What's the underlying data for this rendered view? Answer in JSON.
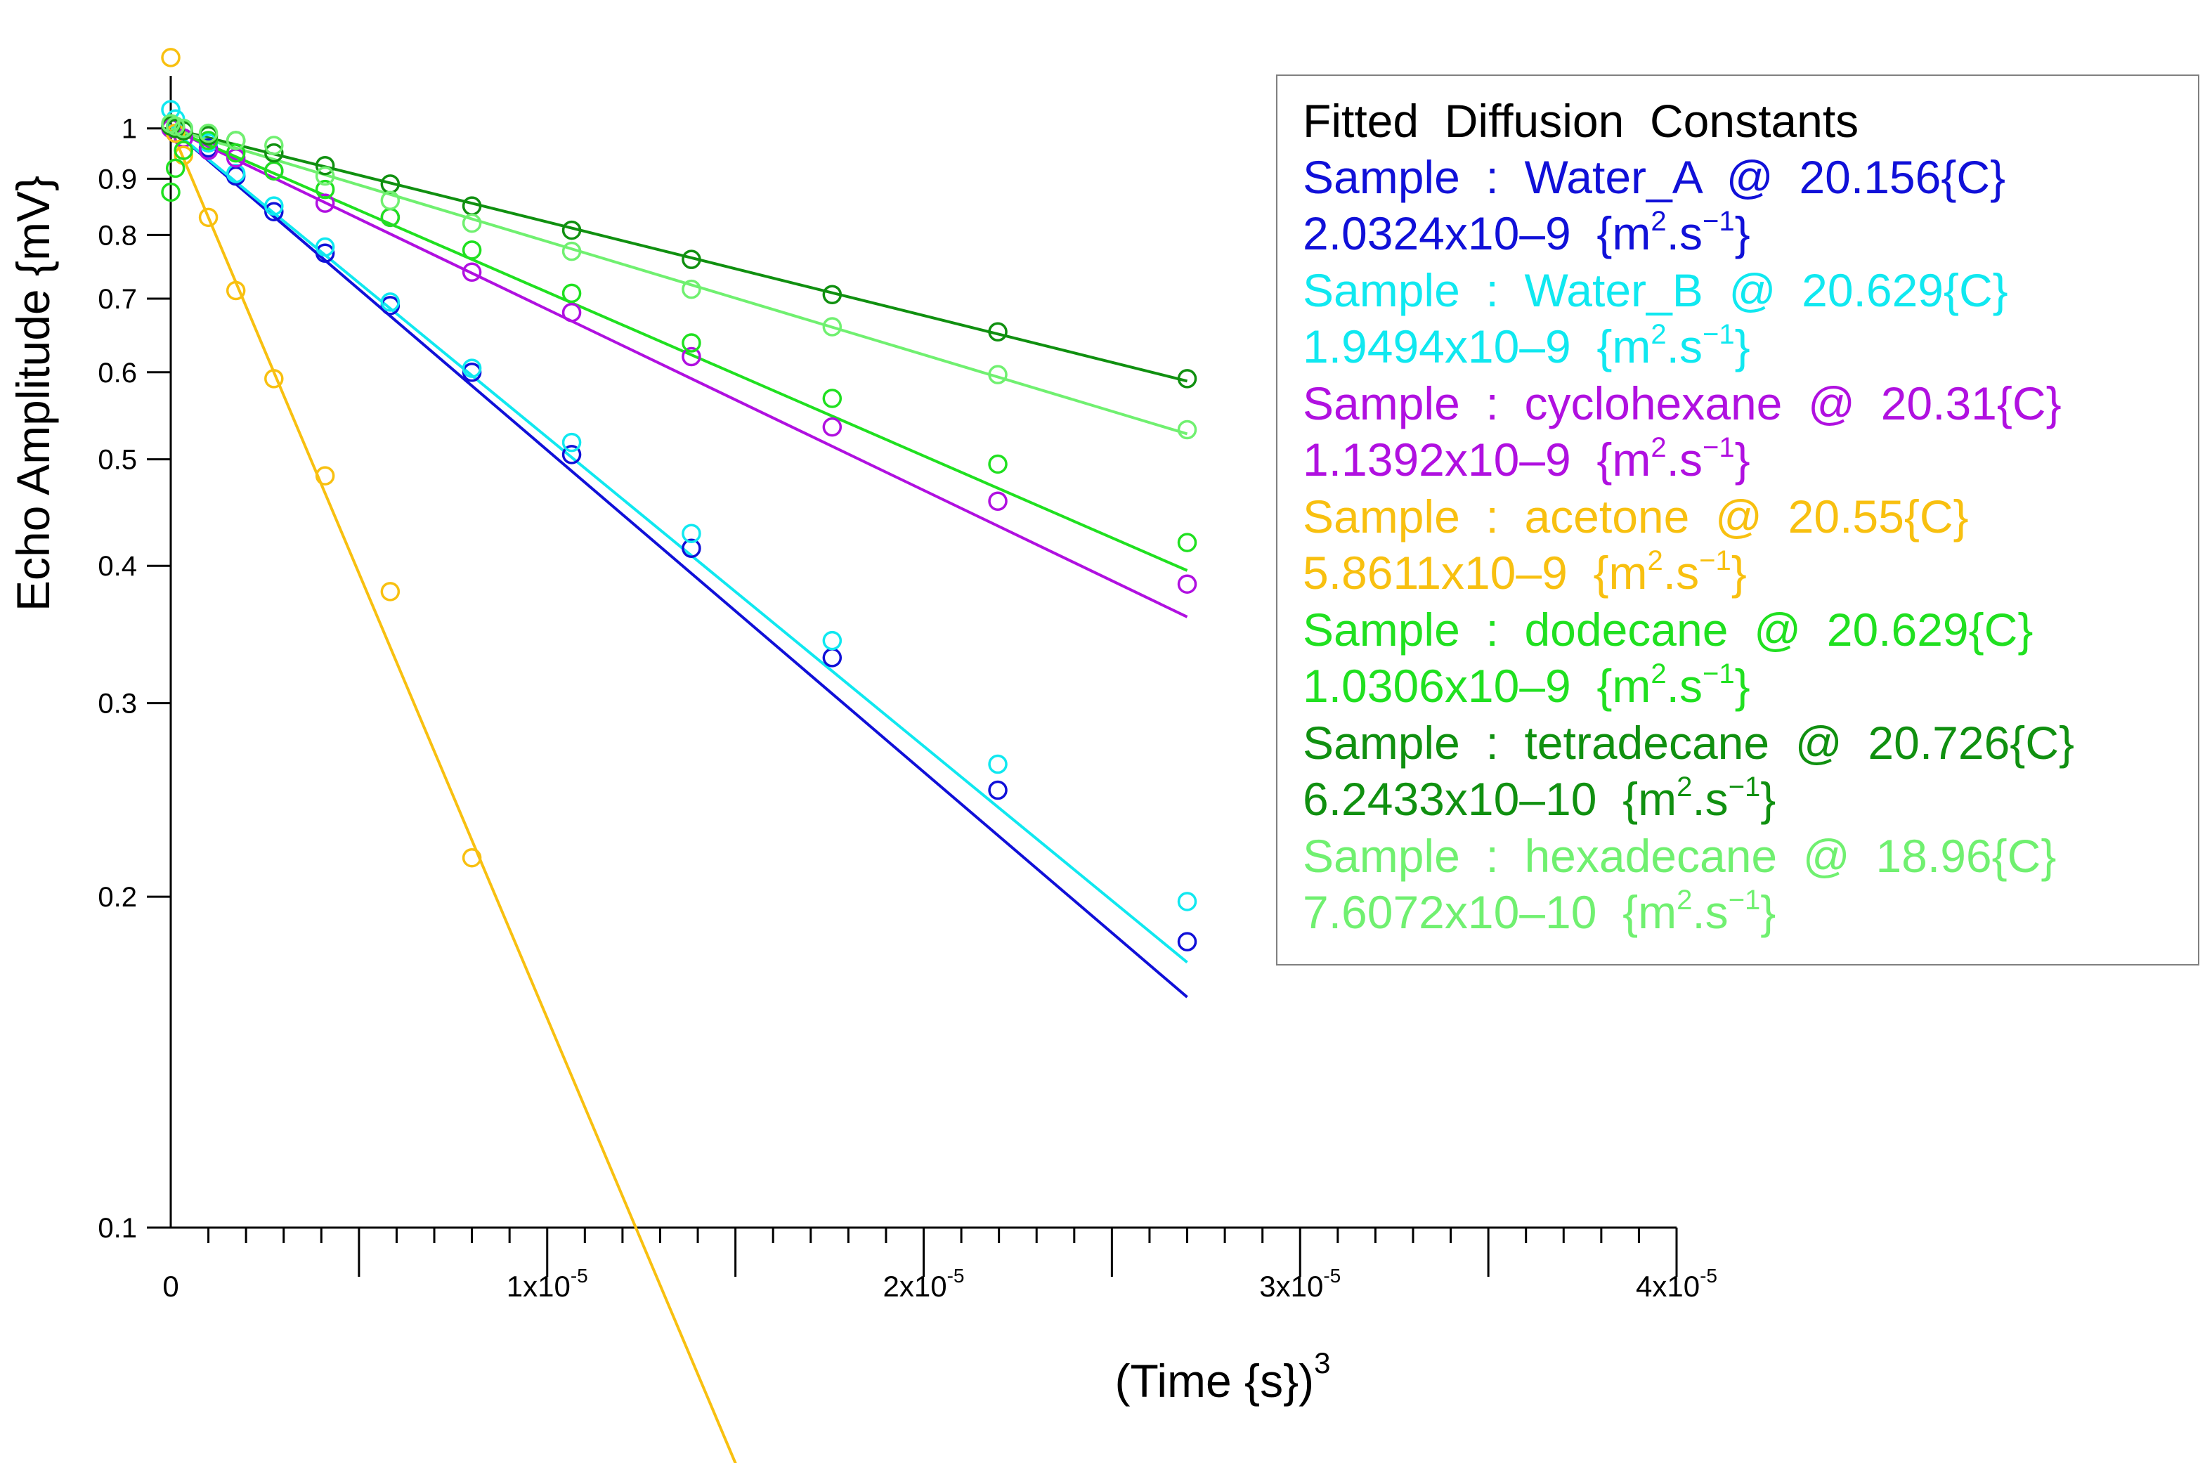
{
  "chart_data": {
    "type": "scatter",
    "xlabel": "(Time  {s})",
    "xlabel_superscript": "3",
    "ylabel": "Echo  Amplitude  {mV}",
    "xlim": [
      0,
      4e-05
    ],
    "ylim": [
      0.1,
      1.1
    ],
    "yscale": "log",
    "x_ticks": [
      {
        "value": 0,
        "base": "0",
        "exp": ""
      },
      {
        "value": 1e-05,
        "base": "1x10",
        "exp": "-5"
      },
      {
        "value": 2e-05,
        "base": "2x10",
        "exp": "-5"
      },
      {
        "value": 3e-05,
        "base": "3x10",
        "exp": "-5"
      },
      {
        "value": 4e-05,
        "base": "4x10",
        "exp": "-5"
      }
    ],
    "y_ticks": [
      {
        "value": 1,
        "label": "1"
      },
      {
        "value": 0.9,
        "label": "0.9"
      },
      {
        "value": 0.8,
        "label": "0.8"
      },
      {
        "value": 0.7,
        "label": "0.7"
      },
      {
        "value": 0.6,
        "label": "0.6"
      },
      {
        "value": 0.5,
        "label": "0.5"
      },
      {
        "value": 0.4,
        "label": "0.4"
      },
      {
        "value": 0.3,
        "label": "0.3"
      },
      {
        "value": 0.2,
        "label": "0.2"
      },
      {
        "value": 0.1,
        "label": "0.1"
      }
    ],
    "legend_title": "Fitted  Diffusion  Constants",
    "legend_position": "top-right",
    "series": [
      {
        "name": "Water_A",
        "color": "#1010d8",
        "line1": "Sample  :  Water_A  @  20.156{C}",
        "line2_main": "2.0324x10–9  {m",
        "line2_mid": ".s",
        "line2_end": "}",
        "fit_slope": -67400,
        "x": [
          0,
          1.25e-07,
          3.4e-07,
          1e-06,
          1.73e-06,
          2.74e-06,
          4.1e-06,
          5.83e-06,
          8e-06,
          1.065e-05,
          1.383e-05,
          1.757e-05,
          2.197e-05,
          2.7e-05
        ],
        "y": [
          1.005,
          1.0,
          0.98,
          0.96,
          0.905,
          0.84,
          0.77,
          0.69,
          0.6,
          0.505,
          0.415,
          0.33,
          0.25,
          0.182
        ]
      },
      {
        "name": "Water_B",
        "color": "#10e8f0",
        "line1": "Sample  :  Water_B  @  20.629{C}",
        "line2_main": "1.9494x10–9  {m",
        "line2_mid": ".s",
        "line2_end": "}",
        "fit_slope": -64700,
        "x": [
          0,
          1.25e-07,
          3.4e-07,
          1e-06,
          1.73e-06,
          2.74e-06,
          4.1e-06,
          5.83e-06,
          8e-06,
          1.065e-05,
          1.383e-05,
          1.757e-05,
          2.197e-05,
          2.7e-05
        ],
        "y": [
          1.04,
          1.02,
          1.0,
          0.97,
          0.91,
          0.85,
          0.78,
          0.695,
          0.605,
          0.518,
          0.428,
          0.342,
          0.264,
          0.198
        ]
      },
      {
        "name": "cyclohexane",
        "color": "#b010e0",
        "line1": "Sample  :  cyclohexane  @  20.31{C}",
        "line2_main": "1.1392x10–9  {m",
        "line2_mid": ".s",
        "line2_end": "}",
        "fit_slope": -37900,
        "x": [
          0,
          1.25e-07,
          3.4e-07,
          1e-06,
          1.73e-06,
          2.74e-06,
          4.1e-06,
          5.83e-06,
          8e-06,
          1.065e-05,
          1.383e-05,
          1.757e-05,
          2.197e-05,
          2.7e-05
        ],
        "y": [
          1.0,
          0.99,
          0.98,
          0.955,
          0.94,
          0.915,
          0.855,
          0.83,
          0.74,
          0.68,
          0.62,
          0.535,
          0.458,
          0.385
        ]
      },
      {
        "name": "acetone",
        "color": "#f8c010",
        "line1": "Sample  :  acetone  @  20.55{C}",
        "line2_main": "5.8611x10–9  {m",
        "line2_mid": ".s",
        "line2_end": "}",
        "fit_slope": -186400,
        "x": [
          0,
          1.25e-07,
          3.4e-07,
          1e-06,
          1.73e-06,
          2.74e-06,
          4.1e-06,
          5.83e-06,
          8e-06
        ],
        "y": [
          1.16,
          0.99,
          0.945,
          0.83,
          0.712,
          0.592,
          0.483,
          0.379,
          0.217
        ]
      },
      {
        "name": "dodecane",
        "color": "#20e020",
        "line1": "Sample  :  dodecane  @  20.629{C}",
        "line2_main": "1.0306x10–9  {m",
        "line2_mid": ".s",
        "line2_end": "}",
        "fit_slope": -34300,
        "x": [
          0,
          1.25e-07,
          3.4e-07,
          1e-06,
          1.73e-06,
          2.74e-06,
          4.1e-06,
          5.83e-06,
          8e-06,
          1.065e-05,
          1.383e-05,
          1.757e-05,
          2.197e-05,
          2.7e-05
        ],
        "y": [
          0.875,
          0.92,
          0.955,
          0.975,
          0.95,
          0.915,
          0.88,
          0.83,
          0.775,
          0.708,
          0.638,
          0.568,
          0.495,
          0.42
        ]
      },
      {
        "name": "tetradecane",
        "color": "#109010",
        "line1": "Sample  :  tetradecane  @  20.726{C}",
        "line2_main": "6.2433x10–10  {m",
        "line2_mid": ".s",
        "line2_end": "}",
        "fit_slope": -19600,
        "x": [
          0,
          1.25e-07,
          3.4e-07,
          1e-06,
          1.73e-06,
          2.74e-06,
          4.1e-06,
          5.83e-06,
          8e-06,
          1.065e-05,
          1.383e-05,
          1.757e-05,
          2.197e-05,
          2.7e-05
        ],
        "y": [
          1.005,
          1.0,
          0.995,
          0.985,
          0.975,
          0.95,
          0.925,
          0.89,
          0.85,
          0.808,
          0.76,
          0.706,
          0.653,
          0.592
        ]
      },
      {
        "name": "hexadecane",
        "color": "#70f070",
        "line1": "Sample  :  hexadecane  @  18.96{C}",
        "line2_main": "7.6072x10–10  {m",
        "line2_mid": ".s",
        "line2_end": "}",
        "fit_slope": -23700,
        "x": [
          0,
          1.25e-07,
          3.4e-07,
          1e-06,
          1.73e-06,
          2.74e-06,
          4.1e-06,
          5.83e-06,
          8e-06,
          1.065e-05,
          1.383e-05,
          1.757e-05,
          2.197e-05,
          2.7e-05
        ],
        "y": [
          1.01,
          1.005,
          1.0,
          0.99,
          0.975,
          0.965,
          0.905,
          0.86,
          0.82,
          0.773,
          0.714,
          0.66,
          0.597,
          0.532
        ]
      }
    ],
    "units_superscript_1": "2",
    "units_superscript_2": "−1"
  }
}
